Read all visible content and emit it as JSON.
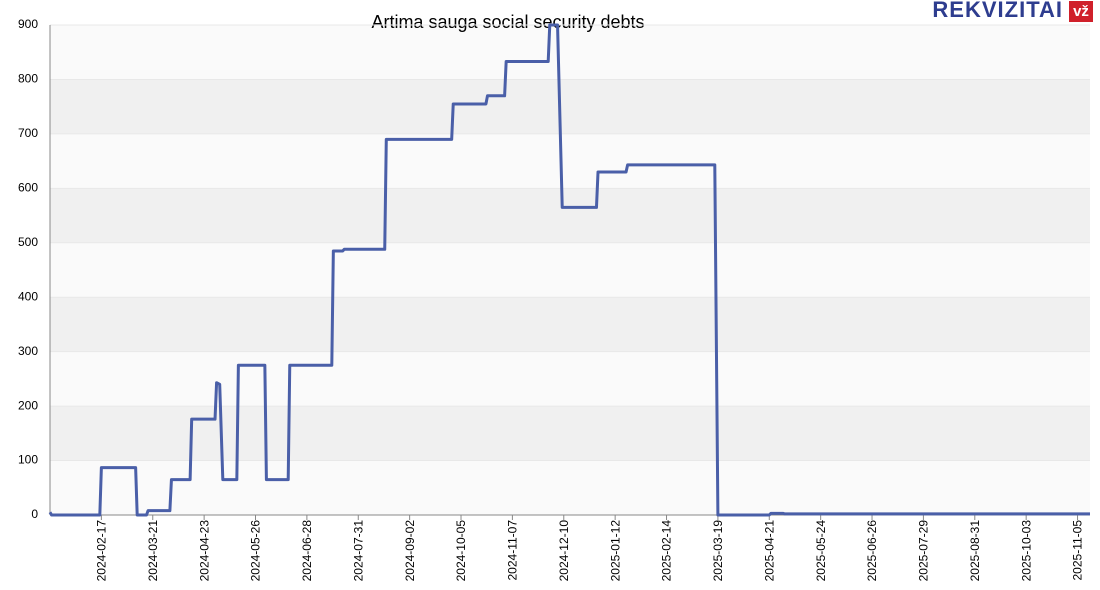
{
  "brand": {
    "name": "REKVIZITAI",
    "mark": "vž"
  },
  "chart_data": {
    "type": "line",
    "title": "Artima sauga social security debts",
    "x": [
      "2024-01-15",
      "2024-01-16",
      "2024-02-16",
      "2024-02-17",
      "2024-03-10",
      "2024-03-11",
      "2024-03-17",
      "2024-03-18",
      "2024-04-01",
      "2024-04-02",
      "2024-04-14",
      "2024-04-15",
      "2024-04-30",
      "2024-05-01",
      "2024-05-03",
      "2024-05-05",
      "2024-05-14",
      "2024-05-15",
      "2024-06-01",
      "2024-06-02",
      "2024-06-16",
      "2024-06-17",
      "2024-07-14",
      "2024-07-15",
      "2024-07-21",
      "2024-07-22",
      "2024-08-17",
      "2024-08-18",
      "2024-09-29",
      "2024-09-30",
      "2024-10-21",
      "2024-10-22",
      "2024-11-02",
      "2024-11-03",
      "2024-11-30",
      "2024-12-01",
      "2024-12-06",
      "2024-12-09",
      "2024-12-31",
      "2025-01-01",
      "2025-01-19",
      "2025-01-20",
      "2025-03-17",
      "2025-03-19",
      "2025-04-21",
      "2025-04-22",
      "2025-04-30",
      "2025-05-01",
      "2025-11-13"
    ],
    "series": [
      {
        "name": "Debts",
        "color": "#4a5fa8",
        "values": [
          5,
          0,
          0,
          87,
          87,
          0,
          0,
          8,
          8,
          65,
          65,
          176,
          176,
          243,
          240,
          65,
          65,
          275,
          275,
          65,
          65,
          275,
          275,
          485,
          485,
          488,
          488,
          690,
          690,
          755,
          755,
          770,
          770,
          833,
          833,
          900,
          900,
          565,
          565,
          630,
          630,
          643,
          643,
          0,
          0,
          3,
          3,
          2,
          2
        ]
      }
    ],
    "xlim": [
      "2024-01-15",
      "2025-11-13"
    ],
    "xticks": [
      "2024-02-17",
      "2024-03-21",
      "2024-04-23",
      "2024-05-26",
      "2024-06-28",
      "2024-07-31",
      "2024-09-02",
      "2024-10-05",
      "2024-11-07",
      "2024-12-10",
      "2025-01-12",
      "2025-02-14",
      "2025-03-19",
      "2025-04-21",
      "2025-05-24",
      "2025-06-26",
      "2025-07-29",
      "2025-08-31",
      "2025-10-03",
      "2025-11-05"
    ],
    "ylim": [
      0,
      900
    ],
    "yticks": [
      0,
      100,
      200,
      300,
      400,
      500,
      600,
      700,
      800,
      900
    ],
    "grid": true
  }
}
